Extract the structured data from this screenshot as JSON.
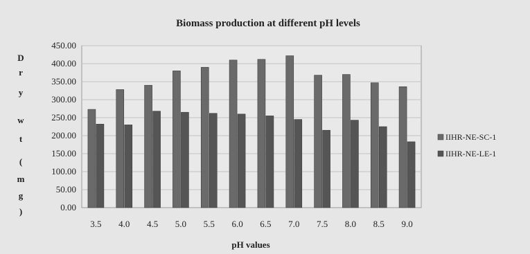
{
  "chart_data": {
    "type": "bar",
    "title": "Biomass production at different pH levels",
    "xlabel": "pH values",
    "ylabel": "Dry wt (mg)",
    "ylabel_letters": [
      "D",
      "r",
      "y",
      "w",
      "t",
      "(",
      "m",
      "g",
      ")"
    ],
    "categories": [
      "3.5",
      "4.0",
      "4.5",
      "5.0",
      "5.5",
      "6.0",
      "6.5",
      "7.0",
      "7.5",
      "8.0",
      "8.5",
      "9.0"
    ],
    "series": [
      {
        "name": "IIHR-NE-SC-1",
        "values": [
          273,
          328,
          340,
          380,
          390,
          410,
          412,
          422,
          368,
          370,
          347,
          336
        ]
      },
      {
        "name": "IIHR-NE-LE-1",
        "values": [
          232,
          230,
          268,
          265,
          262,
          260,
          255,
          245,
          215,
          243,
          225,
          183
        ]
      }
    ],
    "ylim": [
      0,
      450
    ],
    "yticks": [
      "0.00",
      "50.00",
      "100.00",
      "150.00",
      "200.00",
      "250.00",
      "300.00",
      "350.00",
      "400.00",
      "450.00"
    ],
    "grid": true,
    "legend": "right",
    "colors": {
      "series1": "#6a6a6a",
      "series2": "#555555",
      "plot_bg": "#e9e9e9",
      "grid": "#c4c4c4"
    }
  }
}
